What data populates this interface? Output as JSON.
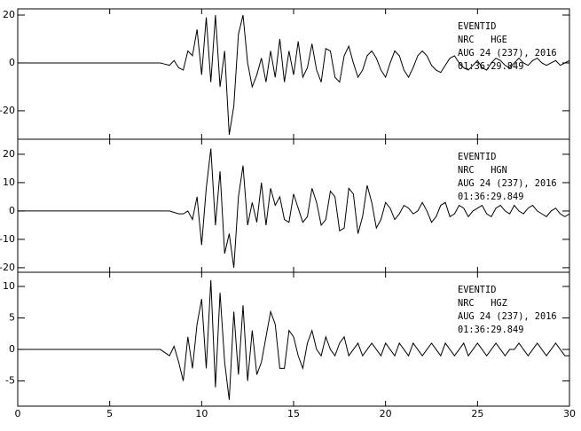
{
  "chart_data": [
    {
      "type": "line",
      "color": "#000000",
      "annotations": [
        "EVENTID",
        "NRC   HGE",
        "AUG 24 (237), 2016",
        "01:36:29.849"
      ],
      "xlim": [
        0,
        30
      ],
      "ylim": [
        -31.9,
        22.6
      ],
      "yticks": [
        -20,
        0,
        20
      ],
      "x": [
        0,
        2,
        4,
        6,
        7,
        7.5,
        7.75,
        8,
        8.25,
        8.5,
        8.75,
        9,
        9.25,
        9.5,
        9.75,
        10,
        10.25,
        10.5,
        10.75,
        11,
        11.25,
        11.5,
        11.75,
        12,
        12.25,
        12.5,
        12.75,
        13,
        13.25,
        13.5,
        13.75,
        14,
        14.25,
        14.5,
        14.75,
        15,
        15.25,
        15.5,
        15.75,
        16,
        16.25,
        16.5,
        16.75,
        17,
        17.25,
        17.5,
        17.75,
        18,
        18.25,
        18.5,
        18.75,
        19,
        19.25,
        19.5,
        19.75,
        20,
        20.25,
        20.5,
        20.75,
        21,
        21.25,
        21.5,
        21.75,
        22,
        22.25,
        22.5,
        22.75,
        23,
        23.25,
        23.5,
        23.75,
        24,
        24.25,
        24.5,
        24.75,
        25,
        25.25,
        25.5,
        25.75,
        26,
        26.25,
        26.5,
        26.75,
        27,
        27.25,
        27.5,
        27.75,
        28,
        28.25,
        28.5,
        28.75,
        29,
        29.25,
        29.5,
        29.75,
        30
      ],
      "values": [
        0,
        0,
        0,
        0,
        0,
        0,
        0,
        -0.5,
        -1,
        1,
        -2,
        -3,
        5,
        3,
        14,
        -5,
        19,
        -8,
        20,
        -10,
        5,
        -30,
        -18,
        12,
        20,
        0,
        -10,
        -5,
        2,
        -8,
        5,
        -6,
        10,
        -8,
        5,
        -5,
        9,
        -6,
        -2,
        8,
        -3,
        -8,
        6,
        5,
        -6,
        -8,
        3,
        7,
        0,
        -6,
        -3,
        3,
        5,
        2,
        -3,
        -6,
        0,
        5,
        3,
        -3,
        -6,
        -2,
        3,
        5,
        3,
        -1,
        -3,
        -4,
        -1,
        2,
        3,
        0,
        -2,
        -3,
        -1,
        1,
        -2,
        -3,
        0,
        2,
        1,
        -1,
        -2,
        0,
        2,
        0,
        -1,
        1,
        2,
        0,
        -1,
        0,
        1,
        -1,
        0,
        1
      ]
    },
    {
      "type": "line",
      "color": "#000000",
      "annotations": [
        "EVENTID",
        "NRC   HGN",
        "AUG 24 (237), 2016",
        "01:36:29.849"
      ],
      "xlim": [
        0,
        30
      ],
      "ylim": [
        -21.6,
        25.3
      ],
      "yticks": [
        -20,
        -10,
        0,
        10,
        20
      ],
      "x": [
        0,
        2,
        4,
        6,
        7,
        7.5,
        7.75,
        8,
        8.25,
        8.5,
        8.75,
        9,
        9.25,
        9.5,
        9.75,
        10,
        10.25,
        10.5,
        10.75,
        11,
        11.25,
        11.5,
        11.75,
        12,
        12.25,
        12.5,
        12.75,
        13,
        13.25,
        13.5,
        13.75,
        14,
        14.25,
        14.5,
        14.75,
        15,
        15.25,
        15.5,
        15.75,
        16,
        16.25,
        16.5,
        16.75,
        17,
        17.25,
        17.5,
        17.75,
        18,
        18.25,
        18.5,
        18.75,
        19,
        19.25,
        19.5,
        19.75,
        20,
        20.25,
        20.5,
        20.75,
        21,
        21.25,
        21.5,
        21.75,
        22,
        22.25,
        22.5,
        22.75,
        23,
        23.25,
        23.5,
        23.75,
        24,
        24.25,
        24.5,
        24.75,
        25,
        25.25,
        25.5,
        25.75,
        26,
        26.25,
        26.5,
        26.75,
        27,
        27.25,
        27.5,
        27.75,
        28,
        28.25,
        28.5,
        28.75,
        29,
        29.25,
        29.5,
        29.75,
        30
      ],
      "values": [
        0,
        0,
        0,
        0,
        0,
        0,
        0,
        0,
        0,
        -0.5,
        -1,
        -1,
        0,
        -3,
        5,
        -12,
        8,
        22,
        -5,
        14,
        -15,
        -8,
        -20,
        5,
        16,
        -5,
        3,
        -4,
        10,
        -5,
        8,
        2,
        5,
        -3,
        -4,
        6,
        1,
        -4,
        -2,
        8,
        3,
        -5,
        -3,
        7,
        5,
        -7,
        -6,
        8,
        6,
        -8,
        -2,
        9,
        3,
        -6,
        -3,
        3,
        1,
        -3,
        -1,
        2,
        1,
        -1,
        0,
        3,
        0,
        -4,
        -2,
        2,
        3,
        -2,
        -1,
        2,
        1,
        -2,
        0,
        1,
        2,
        -1,
        -2,
        1,
        2,
        0,
        -1,
        2,
        0,
        -1,
        1,
        2,
        0,
        -1,
        -2,
        0,
        1,
        -1,
        -2,
        -1
      ]
    },
    {
      "type": "line",
      "color": "#000000",
      "annotations": [
        "EVENTID",
        "NRC   HGZ",
        "AUG 24 (237), 2016",
        "01:36:29.849"
      ],
      "xlim": [
        0,
        30
      ],
      "ylim": [
        -9.0,
        12.25
      ],
      "yticks": [
        -5,
        0,
        5,
        10
      ],
      "xticks": [
        0,
        5,
        10,
        15,
        20,
        25,
        30
      ],
      "x": [
        0,
        2,
        4,
        6,
        7,
        7.5,
        7.75,
        8,
        8.25,
        8.5,
        8.75,
        9,
        9.25,
        9.5,
        9.75,
        10,
        10.25,
        10.5,
        10.75,
        11,
        11.25,
        11.5,
        11.75,
        12,
        12.25,
        12.5,
        12.75,
        13,
        13.25,
        13.5,
        13.75,
        14,
        14.25,
        14.5,
        14.75,
        15,
        15.25,
        15.5,
        15.75,
        16,
        16.25,
        16.5,
        16.75,
        17,
        17.25,
        17.5,
        17.75,
        18,
        18.25,
        18.5,
        18.75,
        19,
        19.25,
        19.5,
        19.75,
        20,
        20.25,
        20.5,
        20.75,
        21,
        21.25,
        21.5,
        21.75,
        22,
        22.25,
        22.5,
        22.75,
        23,
        23.25,
        23.5,
        23.75,
        24,
        24.25,
        24.5,
        24.75,
        25,
        25.25,
        25.5,
        25.75,
        26,
        26.25,
        26.5,
        26.75,
        27,
        27.25,
        27.5,
        27.75,
        28,
        28.25,
        28.5,
        28.75,
        29,
        29.25,
        29.5,
        29.75,
        30
      ],
      "values": [
        0,
        0,
        0,
        0,
        0,
        0,
        0,
        -0.5,
        -1,
        0.5,
        -2,
        -5,
        2,
        -3,
        4,
        8,
        -3,
        11,
        -6,
        9,
        -2,
        -8,
        6,
        -4,
        7,
        -5,
        3,
        -4,
        -2,
        2,
        6,
        4,
        -3,
        -3,
        3,
        2,
        -1,
        -3,
        1,
        3,
        0,
        -1,
        2,
        0,
        -1,
        1,
        2,
        -1,
        0,
        1,
        -1,
        0,
        1,
        0,
        -1,
        1,
        0,
        -1,
        1,
        0,
        -1,
        1,
        0,
        -1,
        0,
        1,
        0,
        -1,
        1,
        0,
        -1,
        0,
        1,
        -1,
        0,
        1,
        0,
        -1,
        0,
        1,
        0,
        -1,
        0,
        0,
        1,
        0,
        -1,
        0,
        1,
        0,
        -1,
        0,
        1,
        0,
        -1,
        -1
      ]
    }
  ]
}
